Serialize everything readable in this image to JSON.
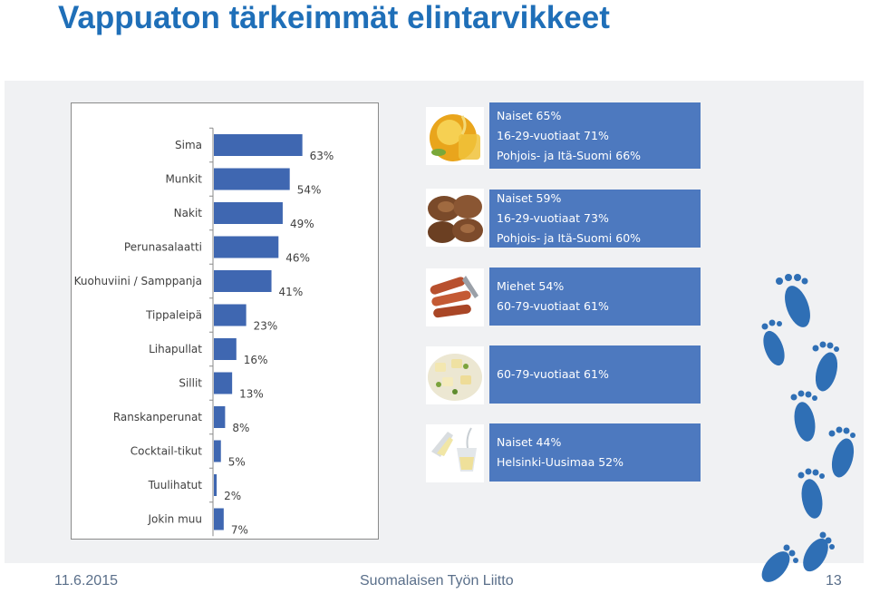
{
  "slide": {
    "title": "Vappuaton tärkeimmät elintarvikkeet",
    "footer_date": "11.6.2015",
    "footer_org": "Suomalaisen Työn Liitto",
    "page_number": "13"
  },
  "chart_data": {
    "type": "bar",
    "orientation": "horizontal",
    "title": "",
    "xlabel": "",
    "ylabel": "",
    "xlim": [
      0,
      100
    ],
    "grid": false,
    "bar_color": "#3f67b1",
    "categories": [
      "Sima",
      "Munkit",
      "Nakit",
      "Perunasalaatti",
      "Kuohuviini / Samppanja",
      "Tippaleipä",
      "Lihapullat",
      "Sillit",
      "Ranskanperunat",
      "Cocktail-tikut",
      "Tuulihatut",
      "Jokin muu"
    ],
    "values": [
      63,
      54,
      49,
      46,
      41,
      23,
      16,
      13,
      8,
      5,
      2,
      7
    ],
    "value_labels": [
      "63%",
      "54%",
      "49%",
      "46%",
      "41%",
      "23%",
      "16%",
      "13%",
      "8%",
      "5%",
      "2%",
      "7%"
    ]
  },
  "info_boxes": [
    {
      "lines": [
        "Naiset 65%",
        "16-29-vuotiaat 71%",
        "Pohjois- ja Itä-Suomi 66%"
      ],
      "image": "honey-jar-image"
    },
    {
      "lines": [
        "Naiset 59%",
        "16-29-vuotiaat 73%",
        "Pohjois- ja Itä-Suomi 60%"
      ],
      "image": "doughnuts-image"
    },
    {
      "lines": [
        "Miehet 54%",
        "60-79-vuotiaat 61%"
      ],
      "image": "sausages-image"
    },
    {
      "lines": [
        "60-79-vuotiaat 61%"
      ],
      "image": "potato-salad-image"
    },
    {
      "lines": [
        "Naiset 44%",
        "Helsinki-Uusimaa 52%"
      ],
      "image": "champagne-glasses-image"
    }
  ],
  "colors": {
    "title": "#1f6fb8",
    "bar": "#3f67b1",
    "info_box": "#4d79bf",
    "footprint": "#2f6fb5"
  }
}
